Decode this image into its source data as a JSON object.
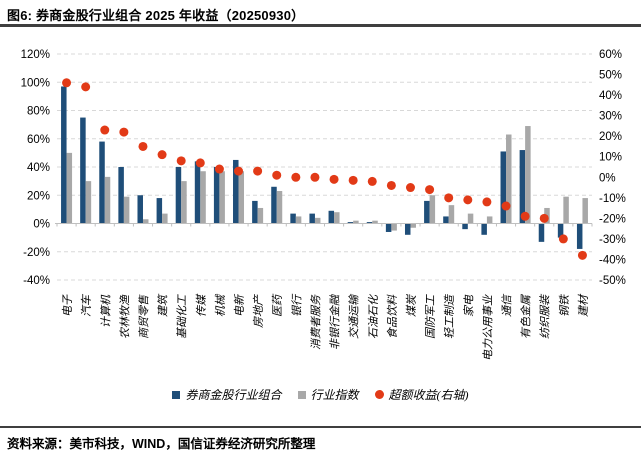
{
  "figure_label_title": "图6: 券商金股行业组合 2025 年收益（20250930）",
  "source_note": "资料来源：美市科技，WIND，国信证券经济研究所整理",
  "legend": {
    "items": [
      {
        "label": "券商金股行业组合",
        "color": "#1F4E79",
        "shape": "square"
      },
      {
        "label": "行业指数",
        "color": "#A8A8A8",
        "shape": "square"
      },
      {
        "label": "超额收益(右轴)",
        "color": "#E23A17",
        "shape": "circle"
      }
    ]
  },
  "colors": {
    "portfolio_bar": "#1F4E79",
    "index_bar": "#A8A8A8",
    "excess_dot": "#E23A17",
    "gridline": "#D8D8D8",
    "axis_line": "#BFBFBF",
    "rule": "#3f3f3f",
    "text": "#000000"
  },
  "chart_data": {
    "type": "bar",
    "title": "券商金股行业组合 2025 年收益（20250930）",
    "grid": "dashed horizontal",
    "legend_position": "bottom",
    "categories": [
      "电子",
      "汽车",
      "计算机",
      "农林牧渔",
      "商贸零售",
      "建筑",
      "基础化工",
      "传媒",
      "机械",
      "电新",
      "房地产",
      "医药",
      "银行",
      "消费者服务",
      "非银行金融",
      "交通运输",
      "石油石化",
      "食品饮料",
      "煤炭",
      "国防军工",
      "轻工制造",
      "家电",
      "电力公用事业",
      "通信",
      "有色金属",
      "纺织服装",
      "钢铁",
      "建材"
    ],
    "series": [
      {
        "name": "券商金股行业组合",
        "type": "bar",
        "axis": "left",
        "color": "#1F4E79",
        "values": [
          97,
          75,
          58,
          40,
          20,
          18,
          40,
          44,
          40,
          45,
          16,
          26,
          7,
          7,
          9,
          1,
          1,
          -6,
          -8,
          16,
          5,
          -4,
          -8,
          51,
          52,
          -13,
          -10,
          -18
        ]
      },
      {
        "name": "行业指数",
        "type": "bar",
        "axis": "left",
        "color": "#A8A8A8",
        "values": [
          50,
          30,
          33,
          19,
          3,
          7,
          30,
          37,
          37,
          37,
          11,
          23,
          5,
          4,
          8,
          2,
          2,
          -5,
          -3,
          20,
          13,
          7,
          5,
          63,
          69,
          11,
          19,
          18
        ]
      },
      {
        "name": "超额收益(右轴)",
        "type": "scatter",
        "axis": "right",
        "color": "#E23A17",
        "values": [
          46,
          44,
          23,
          22,
          15,
          11,
          8,
          7,
          4,
          3,
          3,
          1,
          0,
          0,
          -1,
          -1.5,
          -2,
          -4,
          -5,
          -6,
          -10,
          -11,
          -12,
          -14,
          -19,
          -20,
          -30,
          -38
        ]
      }
    ],
    "left_axis": {
      "min": -40,
      "max": 120,
      "unit": "%",
      "ticks": [
        {
          "label": "120%",
          "value": 120
        },
        {
          "label": "100%",
          "value": 100
        },
        {
          "label": "80%",
          "value": 80
        },
        {
          "label": "60%",
          "value": 60
        },
        {
          "label": "40%",
          "value": 40
        },
        {
          "label": "20%",
          "value": 20
        },
        {
          "label": "0%",
          "value": 0
        },
        {
          "label": "-20%",
          "value": -20
        },
        {
          "label": "-40%",
          "value": -40
        }
      ]
    },
    "right_axis": {
      "min": -50,
      "max": 60,
      "unit": "%",
      "ticks": [
        {
          "label": "60%",
          "value": 60
        },
        {
          "label": "50%",
          "value": 50
        },
        {
          "label": "40%",
          "value": 40
        },
        {
          "label": "30%",
          "value": 30
        },
        {
          "label": "20%",
          "value": 20
        },
        {
          "label": "10%",
          "value": 10
        },
        {
          "label": "0%",
          "value": 0
        },
        {
          "label": "-10%",
          "value": -10
        },
        {
          "label": "-20%",
          "value": -20
        },
        {
          "label": "-30%",
          "value": -30
        },
        {
          "label": "-40%",
          "value": -40
        },
        {
          "label": "-50%",
          "value": -50
        }
      ]
    }
  }
}
